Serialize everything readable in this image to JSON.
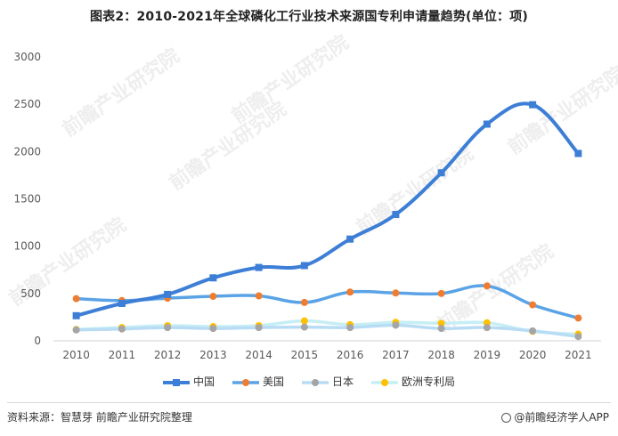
{
  "title": "图表2：2010-2021年全球磷化工行业技术来源国专利申请量趋势(单位：项)",
  "source": "资料来源：智慧芽 前瞻产业研究院整理",
  "brand": "@前瞻经济学人APP",
  "watermark": "前瞻产业研究院",
  "chart_data": {
    "type": "line",
    "categories": [
      "2010",
      "2011",
      "2012",
      "2013",
      "2014",
      "2015",
      "2016",
      "2017",
      "2018",
      "2019",
      "2020",
      "2021"
    ],
    "ylim": [
      0,
      3000
    ],
    "yticks": [
      "0",
      "500",
      "1000",
      "1500",
      "2000",
      "2500",
      "3000"
    ],
    "grid": false,
    "legend_position": "bottom",
    "series": [
      {
        "name": "中国",
        "color": "#3d7ed6",
        "marker": "square",
        "values": [
          265,
          395,
          490,
          665,
          775,
          795,
          1075,
          1335,
          1775,
          2290,
          2495,
          1980
        ]
      },
      {
        "name": "美国",
        "color": "#5aa3e6",
        "marker": "circle",
        "marker_color": "#ee7d31",
        "values": [
          445,
          425,
          450,
          470,
          475,
          405,
          515,
          505,
          500,
          580,
          380,
          240
        ]
      },
      {
        "name": "日本",
        "color": "#b9dcf5",
        "marker": "circle",
        "marker_color": "#a5a5a5",
        "values": [
          115,
          125,
          140,
          130,
          140,
          145,
          140,
          165,
          130,
          140,
          105,
          45
        ]
      },
      {
        "name": "欧洲专利局",
        "color": "#c6eef5",
        "marker": "circle",
        "marker_color": "#ffc000",
        "values": [
          120,
          140,
          160,
          150,
          160,
          210,
          170,
          195,
          185,
          190,
          100,
          70
        ]
      }
    ]
  }
}
